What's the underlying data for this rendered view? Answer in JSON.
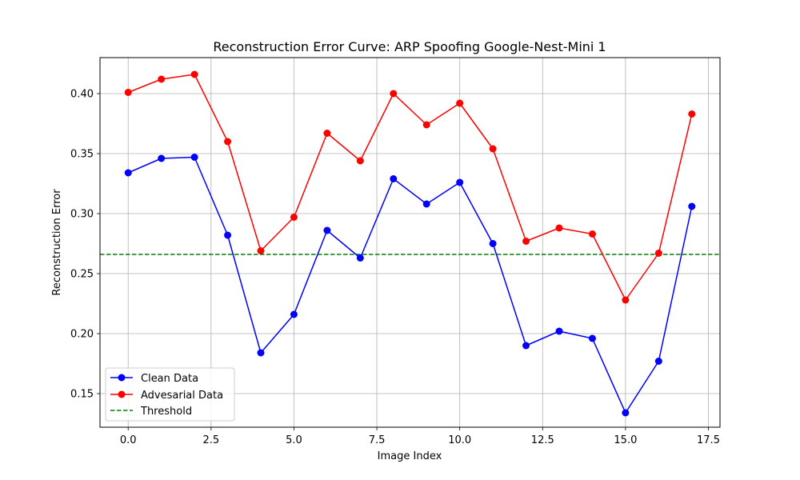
{
  "chart_data": {
    "type": "line",
    "title": "Reconstruction Error Curve: ARP Spoofing Google-Nest-Mini 1",
    "xlabel": "Image Index",
    "ylabel": "Reconstruction Error",
    "xlim": [
      -0.85,
      17.85
    ],
    "ylim": [
      0.122,
      0.43
    ],
    "xticks": [
      0.0,
      2.5,
      5.0,
      7.5,
      10.0,
      12.5,
      15.0,
      17.5
    ],
    "xtick_labels": [
      "0.0",
      "2.5",
      "5.0",
      "7.5",
      "10.0",
      "12.5",
      "15.0",
      "17.5"
    ],
    "yticks": [
      0.15,
      0.2,
      0.25,
      0.3,
      0.35,
      0.4
    ],
    "ytick_labels": [
      "0.15",
      "0.20",
      "0.25",
      "0.30",
      "0.35",
      "0.40"
    ],
    "grid": true,
    "legend_position": "lower-left",
    "x": [
      0,
      1,
      2,
      3,
      4,
      5,
      6,
      7,
      8,
      9,
      10,
      11,
      12,
      13,
      14,
      15,
      16,
      17
    ],
    "series": [
      {
        "name": "Clean Data",
        "color": "#0000ff",
        "style": "solid",
        "marker": "circle",
        "values": [
          0.334,
          0.346,
          0.347,
          0.282,
          0.184,
          0.216,
          0.286,
          0.263,
          0.329,
          0.308,
          0.326,
          0.275,
          0.19,
          0.202,
          0.196,
          0.134,
          0.177,
          0.306
        ]
      },
      {
        "name": "Advesarial Data",
        "color": "#ff0000",
        "style": "solid",
        "marker": "circle",
        "values": [
          0.401,
          0.412,
          0.416,
          0.36,
          0.269,
          0.297,
          0.367,
          0.344,
          0.4,
          0.374,
          0.392,
          0.354,
          0.277,
          0.288,
          0.283,
          0.228,
          0.267,
          0.383
        ]
      }
    ],
    "threshold": {
      "name": "Threshold",
      "value": 0.266,
      "color": "#008000",
      "style": "dashed"
    }
  }
}
